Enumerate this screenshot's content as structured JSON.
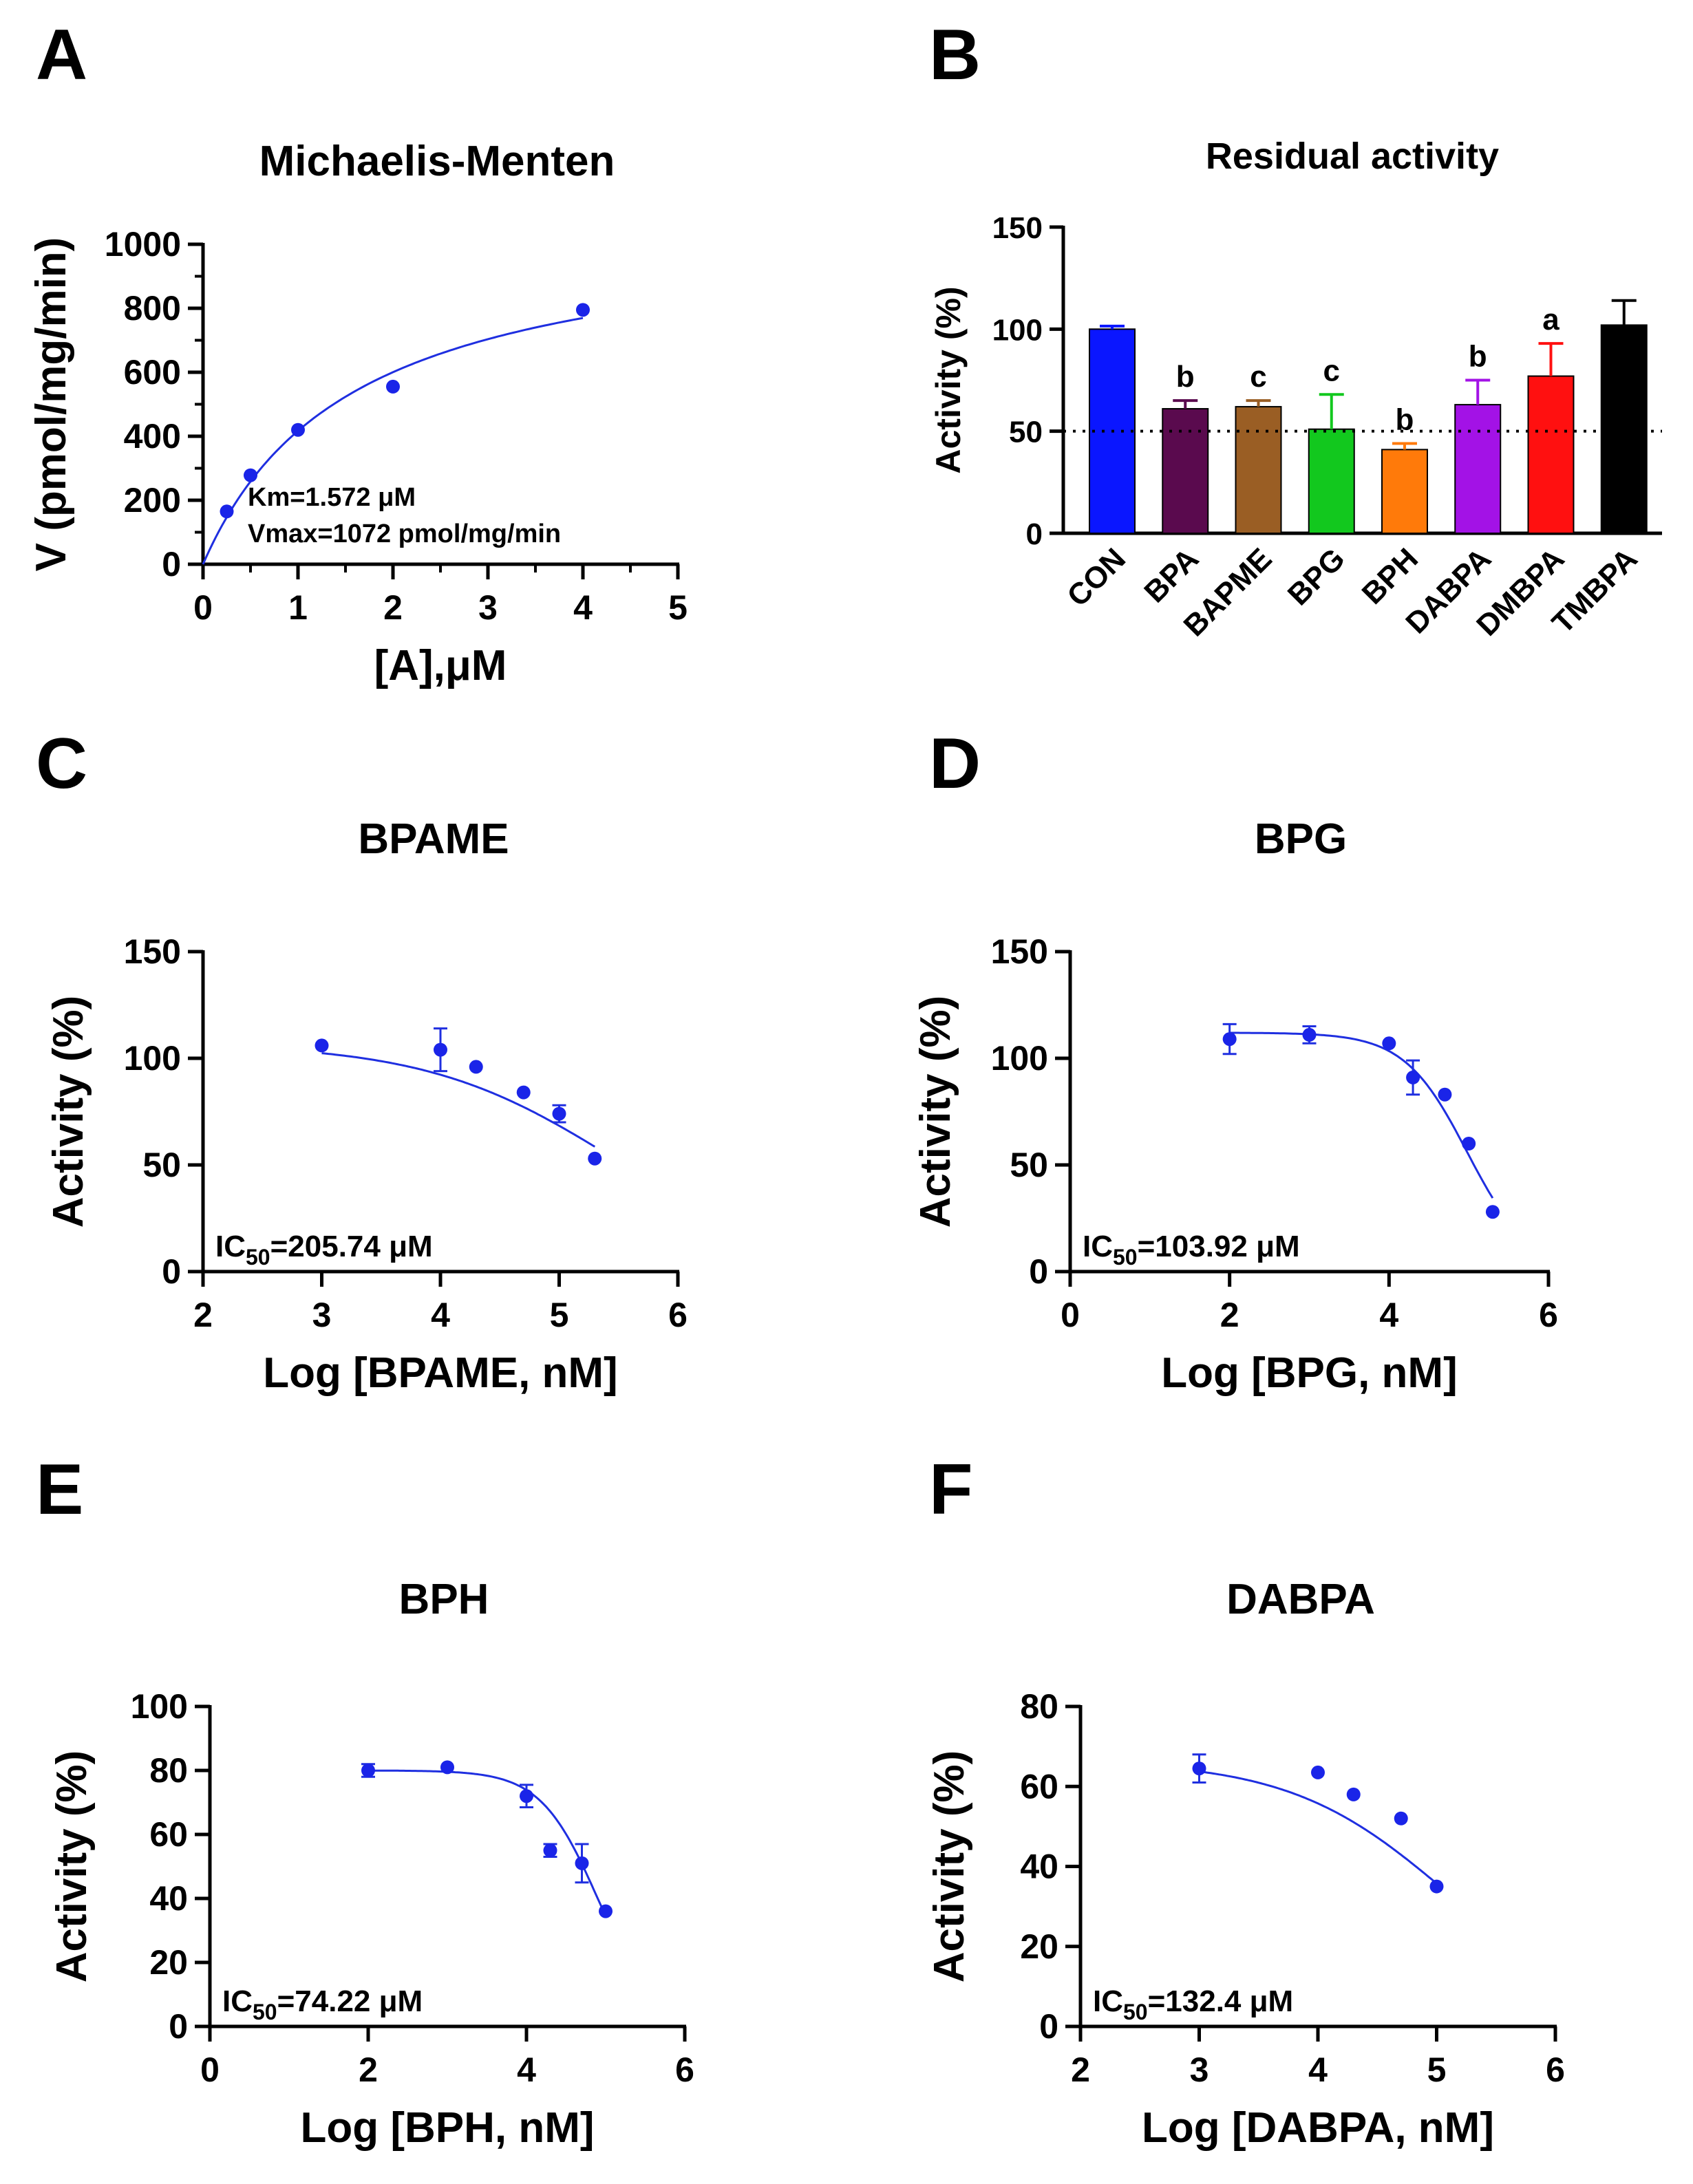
{
  "figure": {
    "panels": [
      "A",
      "B",
      "C",
      "D",
      "E",
      "F"
    ]
  },
  "colors": {
    "curve": "#1f2fe0",
    "point": "#1a24e8",
    "axis": "#000000"
  },
  "chart_data": [
    {
      "id": "A",
      "type": "scatter",
      "title": "Michaelis-Menten",
      "xlabel": "[A],μM",
      "ylabel": "V (pmol/mg/min)",
      "xlim": [
        0,
        5
      ],
      "ylim": [
        0,
        1000
      ],
      "xticks": [
        0,
        1,
        2,
        3,
        4,
        5
      ],
      "yticks": [
        0,
        200,
        400,
        600,
        800,
        1000
      ],
      "points": [
        {
          "x": 0.25,
          "y": 165
        },
        {
          "x": 0.5,
          "y": 278
        },
        {
          "x": 1,
          "y": 420
        },
        {
          "x": 2,
          "y": 555
        },
        {
          "x": 4,
          "y": 795
        }
      ],
      "fit": {
        "model": "michaelis-menten",
        "km": 1.572,
        "vmax": 1072,
        "xmax": 4
      },
      "annotations": [
        "Km=1.572 μM",
        "Vmax=1072 pmol/mg/min"
      ]
    },
    {
      "id": "B",
      "type": "bar",
      "title": "Residual activity",
      "ylabel": "Activity (%)",
      "ylim": [
        0,
        150
      ],
      "yticks": [
        0,
        50,
        100,
        150
      ],
      "reference_line": 50,
      "categories": [
        "CON",
        "BPA",
        "BAPME",
        "BPG",
        "BPH",
        "DABPA",
        "DMBPA",
        "TMBPA"
      ],
      "values": [
        100,
        61,
        62,
        51,
        41,
        63,
        77,
        102
      ],
      "errors": [
        1.5,
        4,
        3,
        17,
        3,
        12,
        16,
        12
      ],
      "colors": [
        "#0a16ff",
        "#5a0a4e",
        "#9a5e24",
        "#12c81e",
        "#ff7a0a",
        "#a312e6",
        "#ff1010",
        "#000000"
      ],
      "significance": [
        "",
        "b",
        "c",
        "c",
        "b",
        "b",
        "a",
        ""
      ]
    },
    {
      "id": "C",
      "type": "scatter",
      "title": "BPAME",
      "xlabel": "Log [BPAME, nM]",
      "ylabel": "Activity (%)",
      "xlim": [
        2,
        6
      ],
      "ylim": [
        0,
        150
      ],
      "xticks": [
        2,
        3,
        4,
        5,
        6
      ],
      "yticks": [
        0,
        50,
        100,
        150
      ],
      "points": [
        {
          "x": 3,
          "y": 106,
          "err": 0
        },
        {
          "x": 4,
          "y": 104,
          "err": 10
        },
        {
          "x": 4.3,
          "y": 96,
          "err": 0
        },
        {
          "x": 4.7,
          "y": 84,
          "err": 0
        },
        {
          "x": 5,
          "y": 74,
          "err": 4
        },
        {
          "x": 5.3,
          "y": 53,
          "err": 0
        }
      ],
      "fit": {
        "top": 107,
        "ec50": 5.45,
        "hill": 0.55,
        "xmin": 3,
        "xmax": 5.3
      },
      "annotation": {
        "prefix": "IC",
        "sub": "50",
        "suffix": "=205.74 μM"
      }
    },
    {
      "id": "D",
      "type": "scatter",
      "title": "BPG",
      "xlabel": "Log [BPG, nM]",
      "ylabel": "Activity (%)",
      "xlim": [
        0,
        6
      ],
      "ylim": [
        0,
        150
      ],
      "xticks": [
        0,
        2,
        4,
        6
      ],
      "yticks": [
        0,
        50,
        100,
        150
      ],
      "points": [
        {
          "x": 2,
          "y": 109,
          "err": 7
        },
        {
          "x": 3,
          "y": 111,
          "err": 4
        },
        {
          "x": 4,
          "y": 107,
          "err": 0
        },
        {
          "x": 4.3,
          "y": 91,
          "err": 8
        },
        {
          "x": 4.7,
          "y": 83,
          "err": 0
        },
        {
          "x": 5,
          "y": 60,
          "err": 0
        },
        {
          "x": 5.3,
          "y": 28,
          "err": 0
        }
      ],
      "fit": {
        "top": 112,
        "ec50": 4.98,
        "hill": 1.1,
        "xmin": 2,
        "xmax": 5.3
      },
      "annotation": {
        "prefix": "IC",
        "sub": "50",
        "suffix": "=103.92 μM"
      }
    },
    {
      "id": "E",
      "type": "scatter",
      "title": "BPH",
      "xlabel": "Log [BPH, nM]",
      "ylabel": "Activity (%)",
      "xlim": [
        0,
        6
      ],
      "ylim": [
        0,
        100
      ],
      "xticks": [
        0,
        2,
        4,
        6
      ],
      "yticks": [
        0,
        20,
        40,
        60,
        80,
        100
      ],
      "points": [
        {
          "x": 2,
          "y": 80,
          "err": 2
        },
        {
          "x": 3,
          "y": 81,
          "err": 0
        },
        {
          "x": 4,
          "y": 72,
          "err": 3.5
        },
        {
          "x": 4.3,
          "y": 55,
          "err": 2
        },
        {
          "x": 4.7,
          "y": 51,
          "err": 6
        },
        {
          "x": 5,
          "y": 36,
          "err": 0
        }
      ],
      "fit": {
        "top": 80,
        "ec50": 4.9,
        "hill": 1.2,
        "xmin": 2,
        "xmax": 5
      },
      "annotation": {
        "prefix": "IC",
        "sub": "50",
        "suffix": "=74.22 μM"
      }
    },
    {
      "id": "F",
      "type": "scatter",
      "title": "DABPA",
      "xlabel": "Log [DABPA, nM]",
      "ylabel": "Activity (%)",
      "xlim": [
        2,
        6
      ],
      "ylim": [
        0,
        80
      ],
      "xticks": [
        2,
        3,
        4,
        5,
        6
      ],
      "yticks": [
        0,
        20,
        40,
        60,
        80
      ],
      "points": [
        {
          "x": 3,
          "y": 64.5,
          "err": 3.5
        },
        {
          "x": 4,
          "y": 63.5,
          "err": 0
        },
        {
          "x": 4.3,
          "y": 58,
          "err": 0
        },
        {
          "x": 4.7,
          "y": 52,
          "err": 0
        },
        {
          "x": 5,
          "y": 35,
          "err": 0
        }
      ],
      "fit": {
        "top": 66.5,
        "ec50": 5.1,
        "hill": 0.65,
        "xmin": 3,
        "xmax": 5
      },
      "annotation": {
        "prefix": "IC",
        "sub": "50",
        "suffix": "=132.4 μM"
      }
    }
  ]
}
